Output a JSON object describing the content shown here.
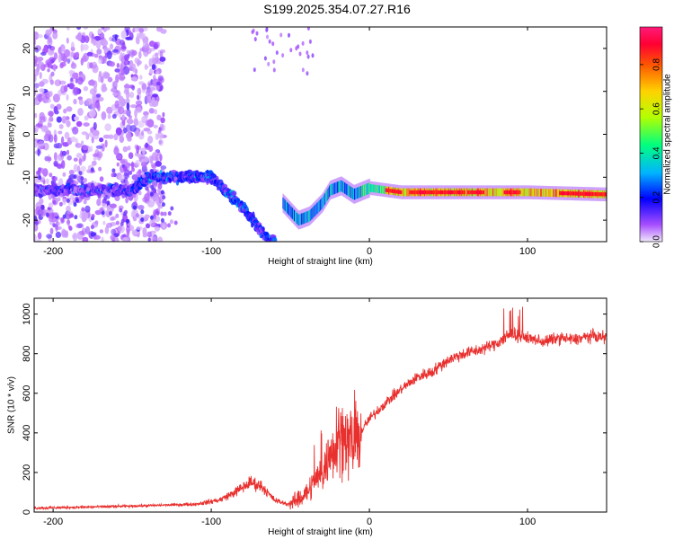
{
  "title": "S199.2025.354.07.27.R16",
  "chart_data": [
    {
      "type": "heatmap",
      "xlabel": "Height of straight line (km)",
      "ylabel": "Frequency (Hz)",
      "xlim": [
        -212,
        150
      ],
      "ylim": [
        -25,
        25
      ],
      "xticks": [
        -200,
        -100,
        0,
        100
      ],
      "yticks": [
        -20,
        -10,
        0,
        10,
        20
      ],
      "colorbar": {
        "label": "Normalized spectral amplitude",
        "range": [
          0,
          0.97
        ],
        "ticks": [
          0,
          0.2,
          0.4,
          0.6,
          0.8
        ],
        "colors": [
          "#e6d9f7",
          "#7f00ff",
          "#0000ff",
          "#00c8ff",
          "#00ff66",
          "#c8ff00",
          "#ffcc00",
          "#ff6600",
          "#ff0033",
          "#ff1a75"
        ]
      },
      "features": {
        "noise_region_x": [
          -212,
          -130
        ],
        "band_track": [
          {
            "x": -212,
            "y": -13
          },
          {
            "x": -150,
            "y": -13
          },
          {
            "x": -140,
            "y": -10
          },
          {
            "x": -110,
            "y": -10
          },
          {
            "x": -100,
            "y": -10
          },
          {
            "x": -80,
            "y": -17
          },
          {
            "x": -65,
            "y": -24
          },
          {
            "x": -60,
            "y": -25
          }
        ],
        "second_track": [
          {
            "x": -55,
            "y": -16
          },
          {
            "x": -45,
            "y": -20
          },
          {
            "x": -38,
            "y": -19
          },
          {
            "x": -30,
            "y": -16
          },
          {
            "x": -25,
            "y": -13
          },
          {
            "x": -18,
            "y": -12
          },
          {
            "x": -10,
            "y": -14
          },
          {
            "x": 0,
            "y": -12.5
          },
          {
            "x": 20,
            "y": -13.5
          },
          {
            "x": 80,
            "y": -13.5
          },
          {
            "x": 100,
            "y": -13.5
          },
          {
            "x": 150,
            "y": -14
          }
        ]
      }
    },
    {
      "type": "line",
      "xlabel": "Height of straight line (km)",
      "ylabel": "SNR (10 * v/v)",
      "xlim": [
        -212,
        150
      ],
      "ylim": [
        0,
        1080
      ],
      "xticks": [
        -200,
        -100,
        0,
        100
      ],
      "yticks": [
        0,
        200,
        400,
        600,
        800,
        1000
      ],
      "line_color": "#e8302e",
      "series": [
        {
          "x": [
            -212,
            -180,
            -150,
            -130,
            -110,
            -95,
            -85,
            -75,
            -68,
            -60,
            -52,
            -45,
            -40,
            -35,
            -30,
            -25,
            -20,
            -15,
            -10,
            -5,
            0,
            10,
            20,
            30,
            40,
            50,
            60,
            70,
            80,
            90,
            100,
            110,
            120,
            130,
            140,
            150
          ],
          "values": [
            20,
            25,
            30,
            35,
            40,
            60,
            100,
            150,
            130,
            60,
            40,
            60,
            100,
            150,
            200,
            280,
            400,
            380,
            340,
            410,
            470,
            550,
            620,
            680,
            710,
            770,
            800,
            820,
            850,
            900,
            880,
            860,
            880,
            870,
            890,
            880
          ]
        }
      ]
    }
  ]
}
